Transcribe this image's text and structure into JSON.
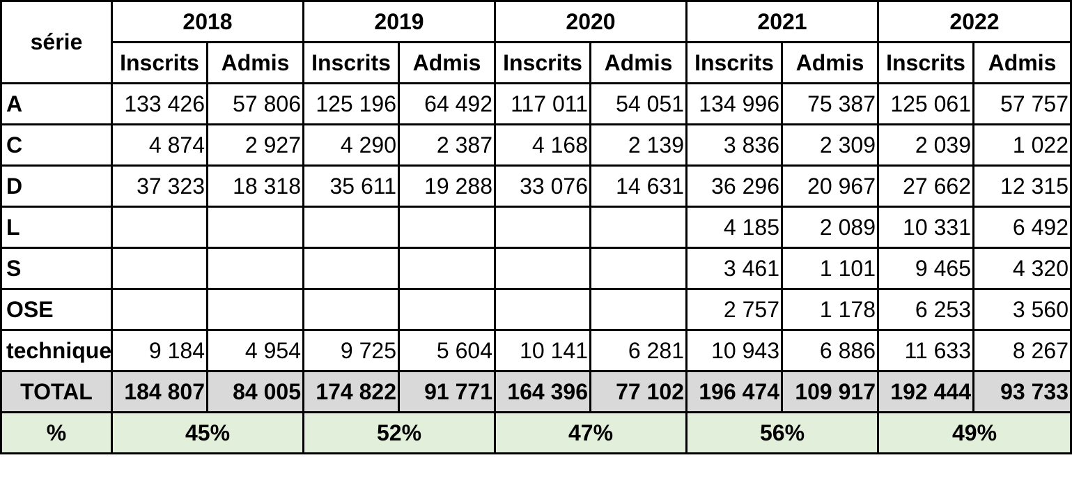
{
  "header": {
    "serie_label": "série",
    "years": [
      "2018",
      "2019",
      "2020",
      "2021",
      "2022"
    ],
    "sub_inscrits": "Inscrits",
    "sub_admis": "Admis"
  },
  "rows": [
    {
      "serie": "A",
      "values": [
        "133 426",
        "57 806",
        "125 196",
        "64 492",
        "117 011",
        "54 051",
        "134 996",
        "75 387",
        "125 061",
        "57 757"
      ]
    },
    {
      "serie": "C",
      "values": [
        "4 874",
        "2 927",
        "4 290",
        "2 387",
        "4 168",
        "2 139",
        "3 836",
        "2 309",
        "2 039",
        "1 022"
      ]
    },
    {
      "serie": "D",
      "values": [
        "37 323",
        "18 318",
        "35 611",
        "19 288",
        "33 076",
        "14 631",
        "36 296",
        "20 967",
        "27 662",
        "12 315"
      ]
    },
    {
      "serie": "L",
      "values": [
        "",
        "",
        "",
        "",
        "",
        "",
        "4 185",
        "2 089",
        "10 331",
        "6 492"
      ]
    },
    {
      "serie": "S",
      "values": [
        "",
        "",
        "",
        "",
        "",
        "",
        "3 461",
        "1 101",
        "9 465",
        "4 320"
      ]
    },
    {
      "serie": "OSE",
      "values": [
        "",
        "",
        "",
        "",
        "",
        "",
        "2 757",
        "1 178",
        "6 253",
        "3 560"
      ]
    },
    {
      "serie": "technique",
      "values": [
        "9 184",
        "4 954",
        "9 725",
        "5 604",
        "10 141",
        "6 281",
        "10 943",
        "6 886",
        "11 633",
        "8 267"
      ]
    }
  ],
  "total": {
    "label": "TOTAL",
    "values": [
      "184 807",
      "84 005",
      "174 822",
      "91 771",
      "164 396",
      "77 102",
      "196 474",
      "109 917",
      "192 444",
      "93 733"
    ]
  },
  "percent": {
    "label": "%",
    "values": [
      "45%",
      "52%",
      "47%",
      "56%",
      "49%"
    ]
  }
}
